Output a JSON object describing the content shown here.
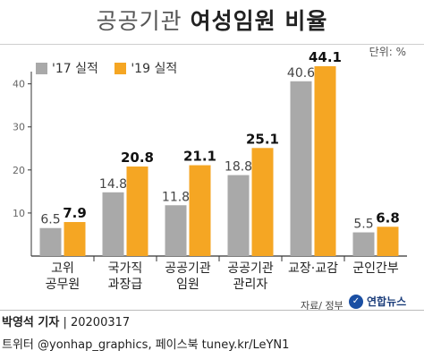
{
  "title": {
    "part1": "공공기관",
    "part2": "여성임원 비율"
  },
  "unit": "단위: %",
  "source": "자료/ 정부",
  "logo_text": "연합뉴스",
  "credit": {
    "name": "박영석 기자",
    "date": "20200317",
    "social": "트위터 @yonhap_graphics, 페이스북 tuney.kr/LeYN1"
  },
  "colors": {
    "s2017": "#a9a9a9",
    "s2019": "#f5a623",
    "axis": "#333333",
    "grid": "#dddddd"
  },
  "chart_data": {
    "type": "bar",
    "title": "공공기관 여성임원 비율",
    "categories": [
      [
        "고위",
        "공무원"
      ],
      [
        "국가직",
        "과장급"
      ],
      [
        "공공기관",
        "임원"
      ],
      [
        "공공기관",
        "관리자"
      ],
      [
        "교장·교감"
      ],
      [
        "군인간부"
      ]
    ],
    "series": [
      {
        "name": "'17 실적",
        "values": [
          6.5,
          14.8,
          11.8,
          18.8,
          40.6,
          5.5
        ],
        "color": "#a9a9a9"
      },
      {
        "name": "'19 실적",
        "values": [
          7.9,
          20.8,
          21.1,
          25.1,
          44.1,
          6.8
        ],
        "color": "#f5a623"
      }
    ],
    "yticks": [
      10,
      20,
      30,
      40
    ],
    "ylim": [
      0,
      47
    ],
    "ylabel": "",
    "xlabel": "",
    "grid": false,
    "legend": "top-left"
  }
}
